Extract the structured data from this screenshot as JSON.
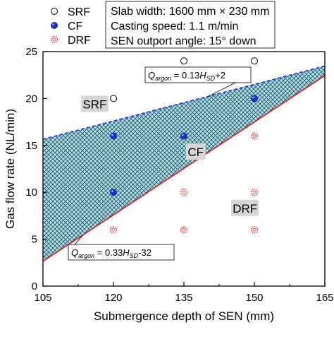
{
  "chart_data": {
    "type": "scatter",
    "xlabel": "Submergence depth of SEN (mm)",
    "ylabel": "Gas flow rate (NL/min)",
    "xlim": [
      105,
      165
    ],
    "ylim": [
      0,
      25
    ],
    "xticks": [
      105,
      120,
      135,
      150,
      165
    ],
    "yticks": [
      0,
      5,
      10,
      15,
      20,
      25
    ],
    "grid": false,
    "legend_position": "top-left",
    "series": [
      {
        "name": "SRF",
        "marker": "open-circle",
        "color": "#000000",
        "points": [
          [
            120,
            20
          ],
          [
            135,
            24
          ],
          [
            150,
            24
          ]
        ]
      },
      {
        "name": "CF",
        "marker": "filled-blue-circle",
        "color": "#1f2fd6",
        "points": [
          [
            120,
            16
          ],
          [
            120,
            10
          ],
          [
            135,
            16
          ],
          [
            150,
            20
          ]
        ]
      },
      {
        "name": "DRF",
        "marker": "red-dotted-circle",
        "color": "#e03030",
        "points": [
          [
            120,
            6
          ],
          [
            135,
            10
          ],
          [
            135,
            6
          ],
          [
            150,
            16
          ],
          [
            150,
            10
          ],
          [
            150,
            6
          ]
        ]
      }
    ],
    "lines": [
      {
        "name": "upper_boundary",
        "style": "dashed",
        "color": "#1f3fd0",
        "slope": 0.13,
        "intercept": 2,
        "label_prefix": "Q",
        "label_sub": "argon",
        "label_mid": " = 0.13",
        "label_var": "H",
        "label_var_sub": "SD",
        "label_suffix": "+2"
      },
      {
        "name": "lower_boundary",
        "style": "solid",
        "color": "#e02020",
        "slope": 0.33,
        "intercept": -32,
        "label_prefix": "Q",
        "label_sub": "argon",
        "label_mid": " = 0.33",
        "label_var": "H",
        "label_var_sub": "SD",
        "label_suffix": "-32"
      }
    ],
    "region_labels": [
      {
        "text": "SRF",
        "x": 116,
        "y": 19.4
      },
      {
        "text": "CF",
        "x": 137.5,
        "y": 14.3
      },
      {
        "text": "DRF",
        "x": 148,
        "y": 8.3
      }
    ],
    "conditions": [
      "Slab width: 1600 mm × 230 mm",
      "Casting speed: 1.1 m/min",
      "SEN outport angle: 15° down"
    ],
    "colors": {
      "hatch_fill": "#a7dfe6",
      "hatch_line": "#1c3a4a",
      "region_label_bg": "#d6d6d6"
    }
  }
}
